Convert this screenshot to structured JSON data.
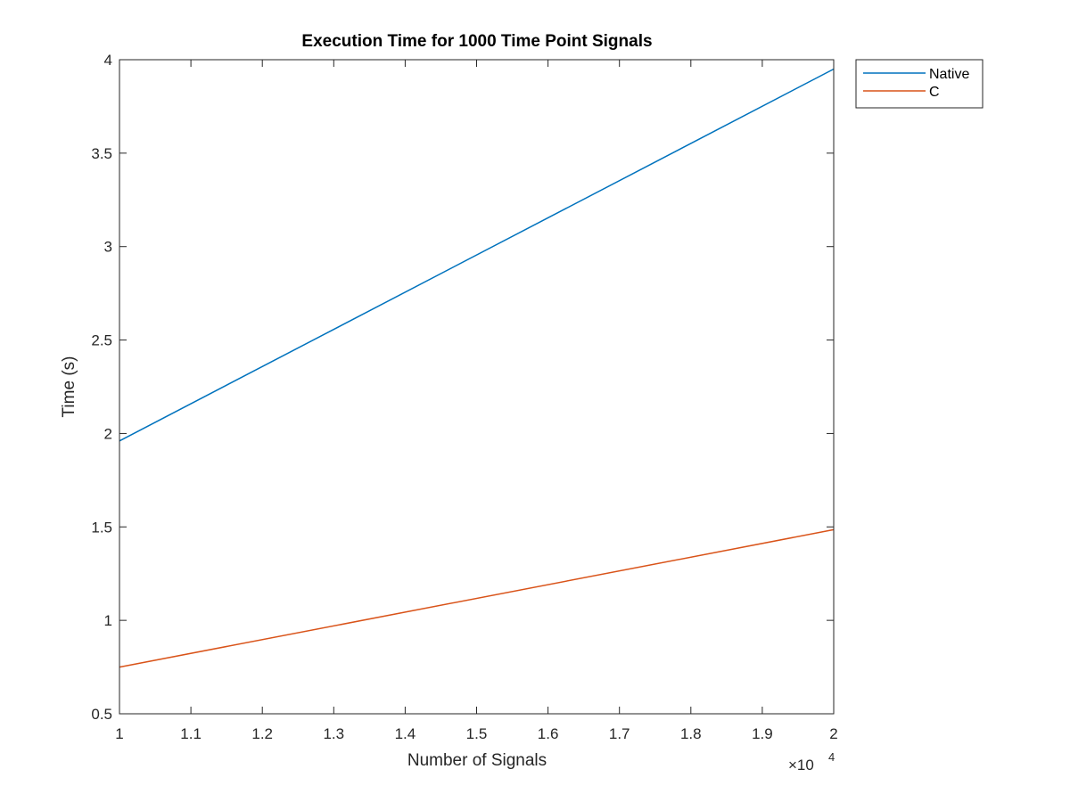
{
  "chart_data": {
    "type": "line",
    "title": "Execution Time for 1000 Time Point Signals",
    "xlabel": "Number of Signals",
    "ylabel": "Time (s)",
    "x_exponent_base": "×10",
    "x_exponent_power": "4",
    "x_multiplier": 10000,
    "xlim": [
      1,
      2
    ],
    "ylim": [
      0.5,
      4
    ],
    "x_ticks": [
      1,
      1.1,
      1.2,
      1.3,
      1.4,
      1.5,
      1.6,
      1.7,
      1.8,
      1.9,
      2
    ],
    "x_tick_labels": [
      "1",
      "1.1",
      "1.2",
      "1.3",
      "1.4",
      "1.5",
      "1.6",
      "1.7",
      "1.8",
      "1.9",
      "2"
    ],
    "y_ticks": [
      0.5,
      1,
      1.5,
      2,
      2.5,
      3,
      3.5,
      4
    ],
    "y_tick_labels": [
      "0.5",
      "1",
      "1.5",
      "2",
      "2.5",
      "3",
      "3.5",
      "4"
    ],
    "grid": false,
    "legend_position": "outside top-right",
    "series": [
      {
        "name": "Native",
        "color": "#0072BD",
        "x": [
          1,
          2
        ],
        "y": [
          1.96,
          3.95
        ]
      },
      {
        "name": "C",
        "color": "#D95319",
        "x": [
          1,
          2
        ],
        "y": [
          0.75,
          1.485
        ]
      }
    ]
  }
}
